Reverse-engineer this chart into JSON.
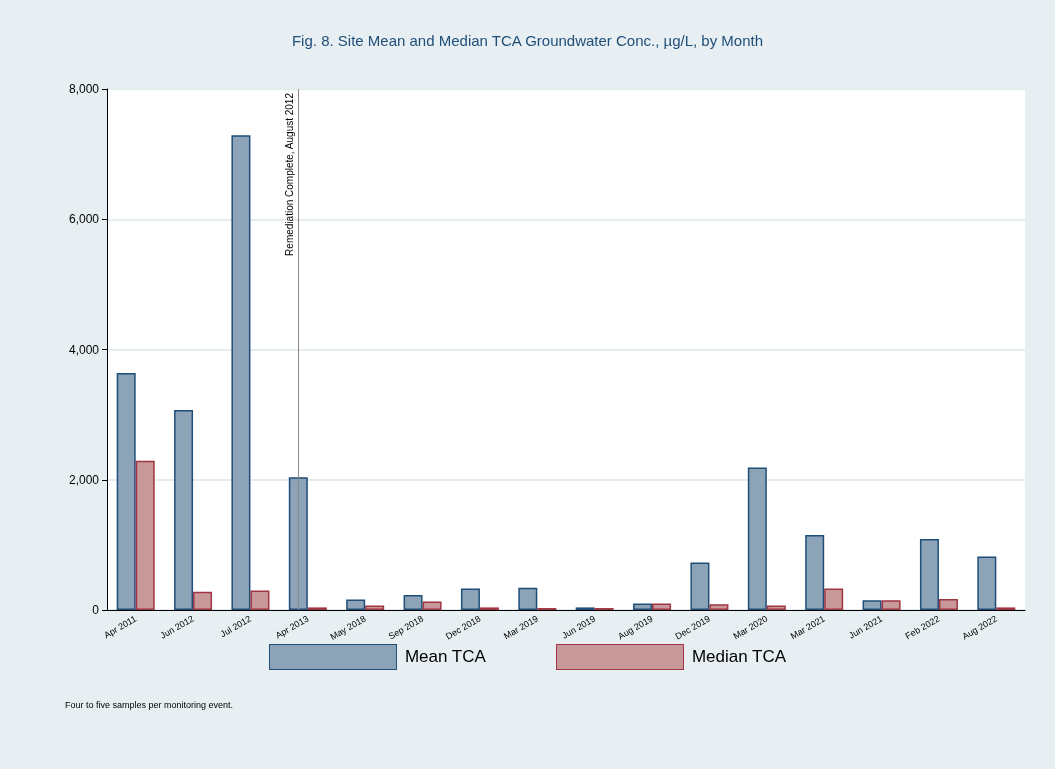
{
  "chart_data": {
    "type": "bar",
    "title": "Fig. 8. Site Mean and Median TCA Groundwater Conc., µg/L, by Month",
    "categories": [
      "Apr 2011",
      "Jun 2012",
      "Jul 2012",
      "Apr 2013",
      "May 2018",
      "Sep 2018",
      "Dec 2018",
      "Mar 2019",
      "Jun 2019",
      "Aug 2019",
      "Dec 2019",
      "Mar 2020",
      "Mar 2021",
      "Jun 2021",
      "Feb 2022",
      "Aug 2022"
    ],
    "series": [
      {
        "name": "Mean TCA",
        "color": "#8da3b8",
        "values": [
          3640,
          3070,
          7290,
          2040,
          160,
          230,
          330,
          340,
          40,
          100,
          730,
          2190,
          1150,
          150,
          1090,
          820
        ]
      },
      {
        "name": "Median TCA",
        "color": "#c8989b",
        "values": [
          2290,
          280,
          300,
          40,
          70,
          130,
          40,
          30,
          30,
          100,
          90,
          70,
          330,
          150,
          170,
          40
        ]
      }
    ],
    "ylim": [
      0,
      8000
    ],
    "yticks": [
      {
        "value": 0,
        "label": "0"
      },
      {
        "value": 2000,
        "label": "2,000"
      },
      {
        "value": 4000,
        "label": "4,000"
      },
      {
        "value": 6000,
        "label": "6,000"
      },
      {
        "value": 8000,
        "label": "8,000"
      }
    ],
    "grid": "y",
    "legend": "bottom",
    "ref_lines": [
      {
        "axis": "x",
        "value": "Apr 2013",
        "label": "Remediation Complete, August 2012",
        "color": "#888888"
      }
    ],
    "annotations": [
      "Four to five samples per monitoring event."
    ]
  }
}
